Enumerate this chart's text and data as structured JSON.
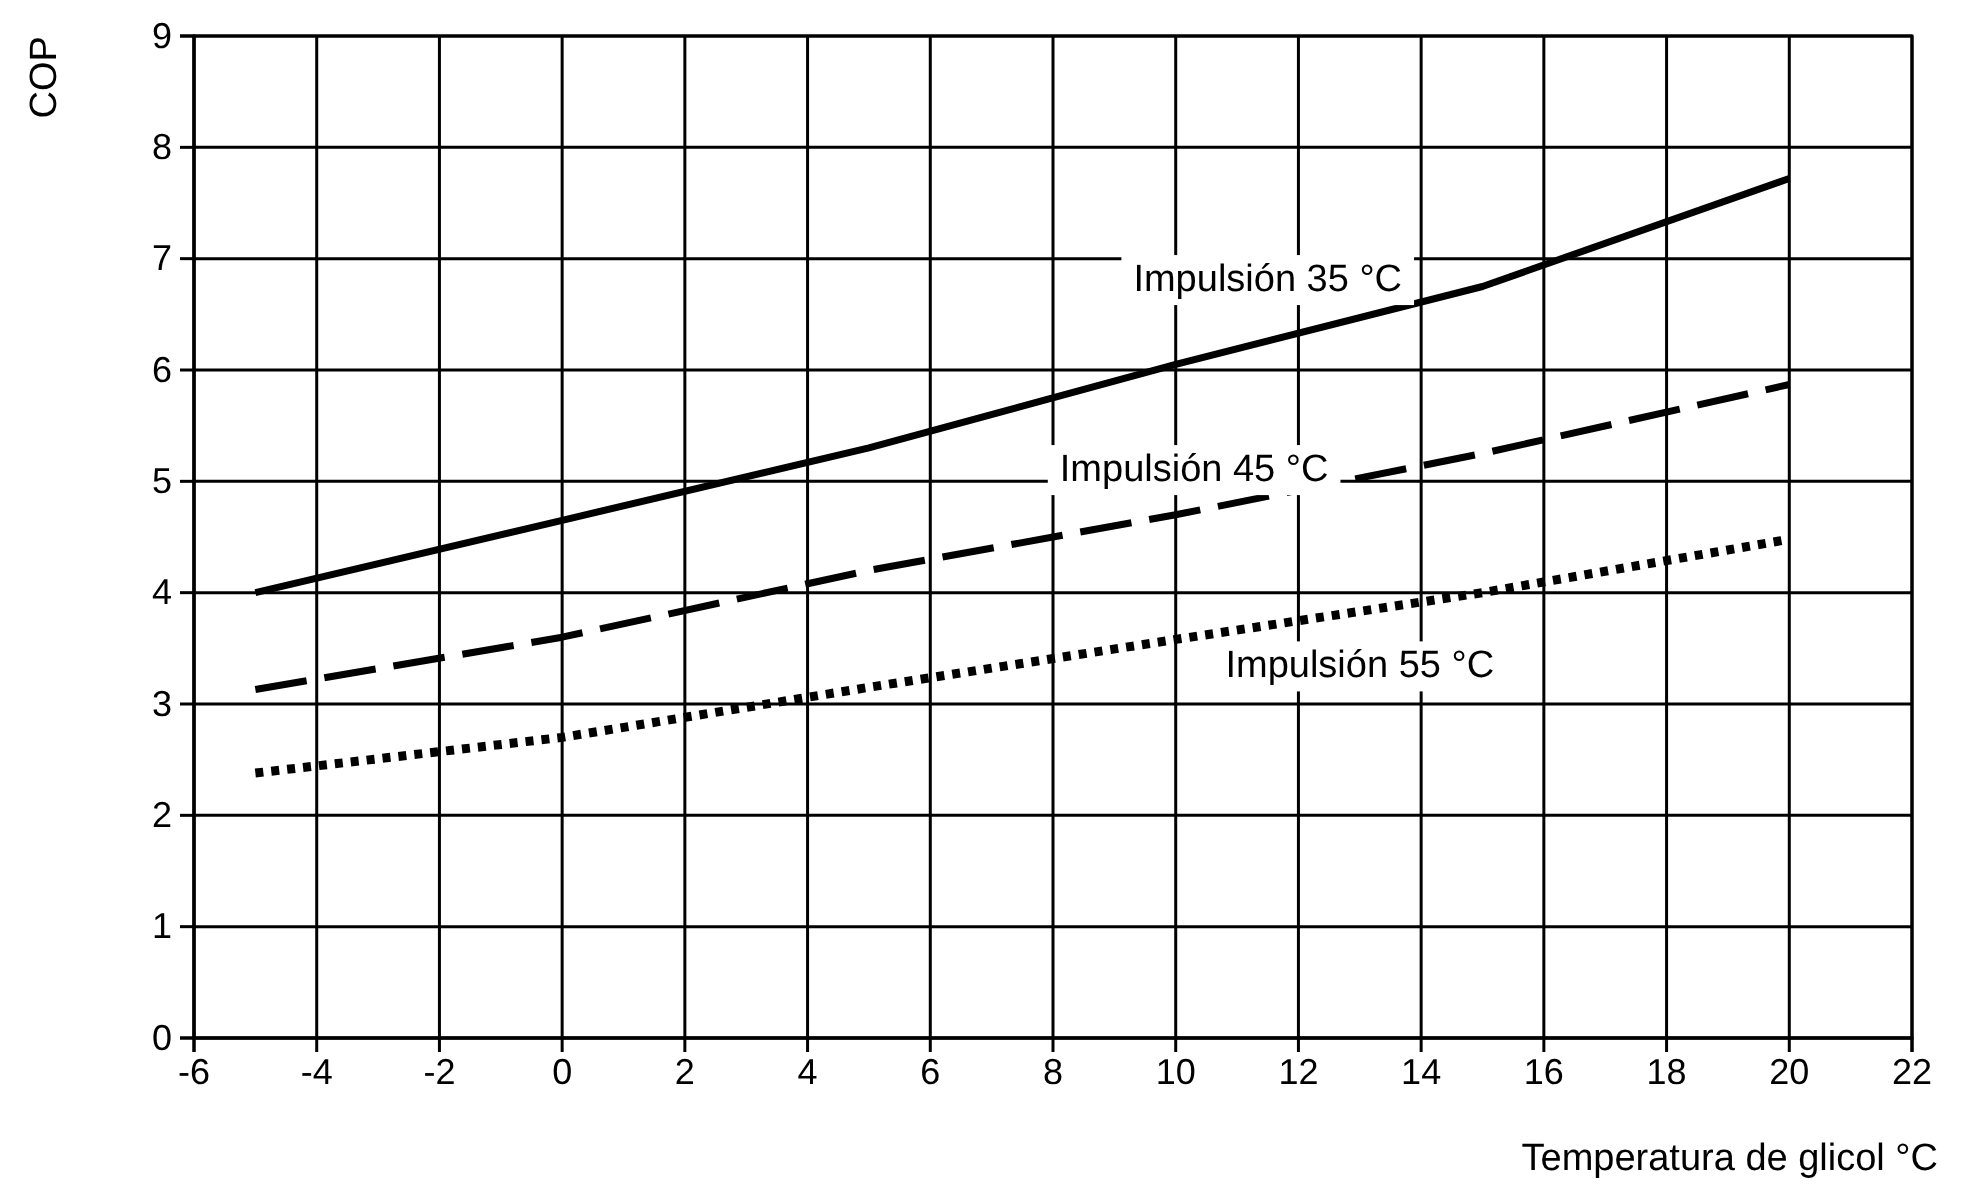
{
  "chart_data": {
    "type": "line",
    "xlabel": "Temperatura de glicol  °C",
    "ylabel": "COP",
    "xlim": [
      -6,
      22
    ],
    "xticks": [
      -6,
      -4,
      -2,
      0,
      2,
      4,
      6,
      8,
      10,
      12,
      14,
      16,
      18,
      20,
      22
    ],
    "ylim": [
      0,
      9
    ],
    "yticks": [
      0,
      1,
      2,
      3,
      4,
      5,
      6,
      7,
      8,
      9
    ],
    "grid": true,
    "series": [
      {
        "name": "Impulsión 35 °C",
        "color": "#000000",
        "line_style": "solid",
        "x": [
          -5,
          0,
          5,
          10,
          15,
          20
        ],
        "values": [
          4.0,
          4.65,
          5.3,
          6.05,
          6.75,
          7.72
        ]
      },
      {
        "name": "Impulsión 45 °C",
        "color": "#000000",
        "line_style": "dashed",
        "x": [
          -5,
          0,
          5,
          10,
          15,
          20
        ],
        "values": [
          3.13,
          3.6,
          4.2,
          4.7,
          5.25,
          5.87
        ]
      },
      {
        "name": "Impulsión 55 °C",
        "color": "#000000",
        "line_style": "dotted",
        "x": [
          -5,
          0,
          5,
          10,
          15,
          20
        ],
        "values": [
          2.38,
          2.7,
          3.15,
          3.58,
          4.0,
          4.48
        ]
      }
    ]
  }
}
